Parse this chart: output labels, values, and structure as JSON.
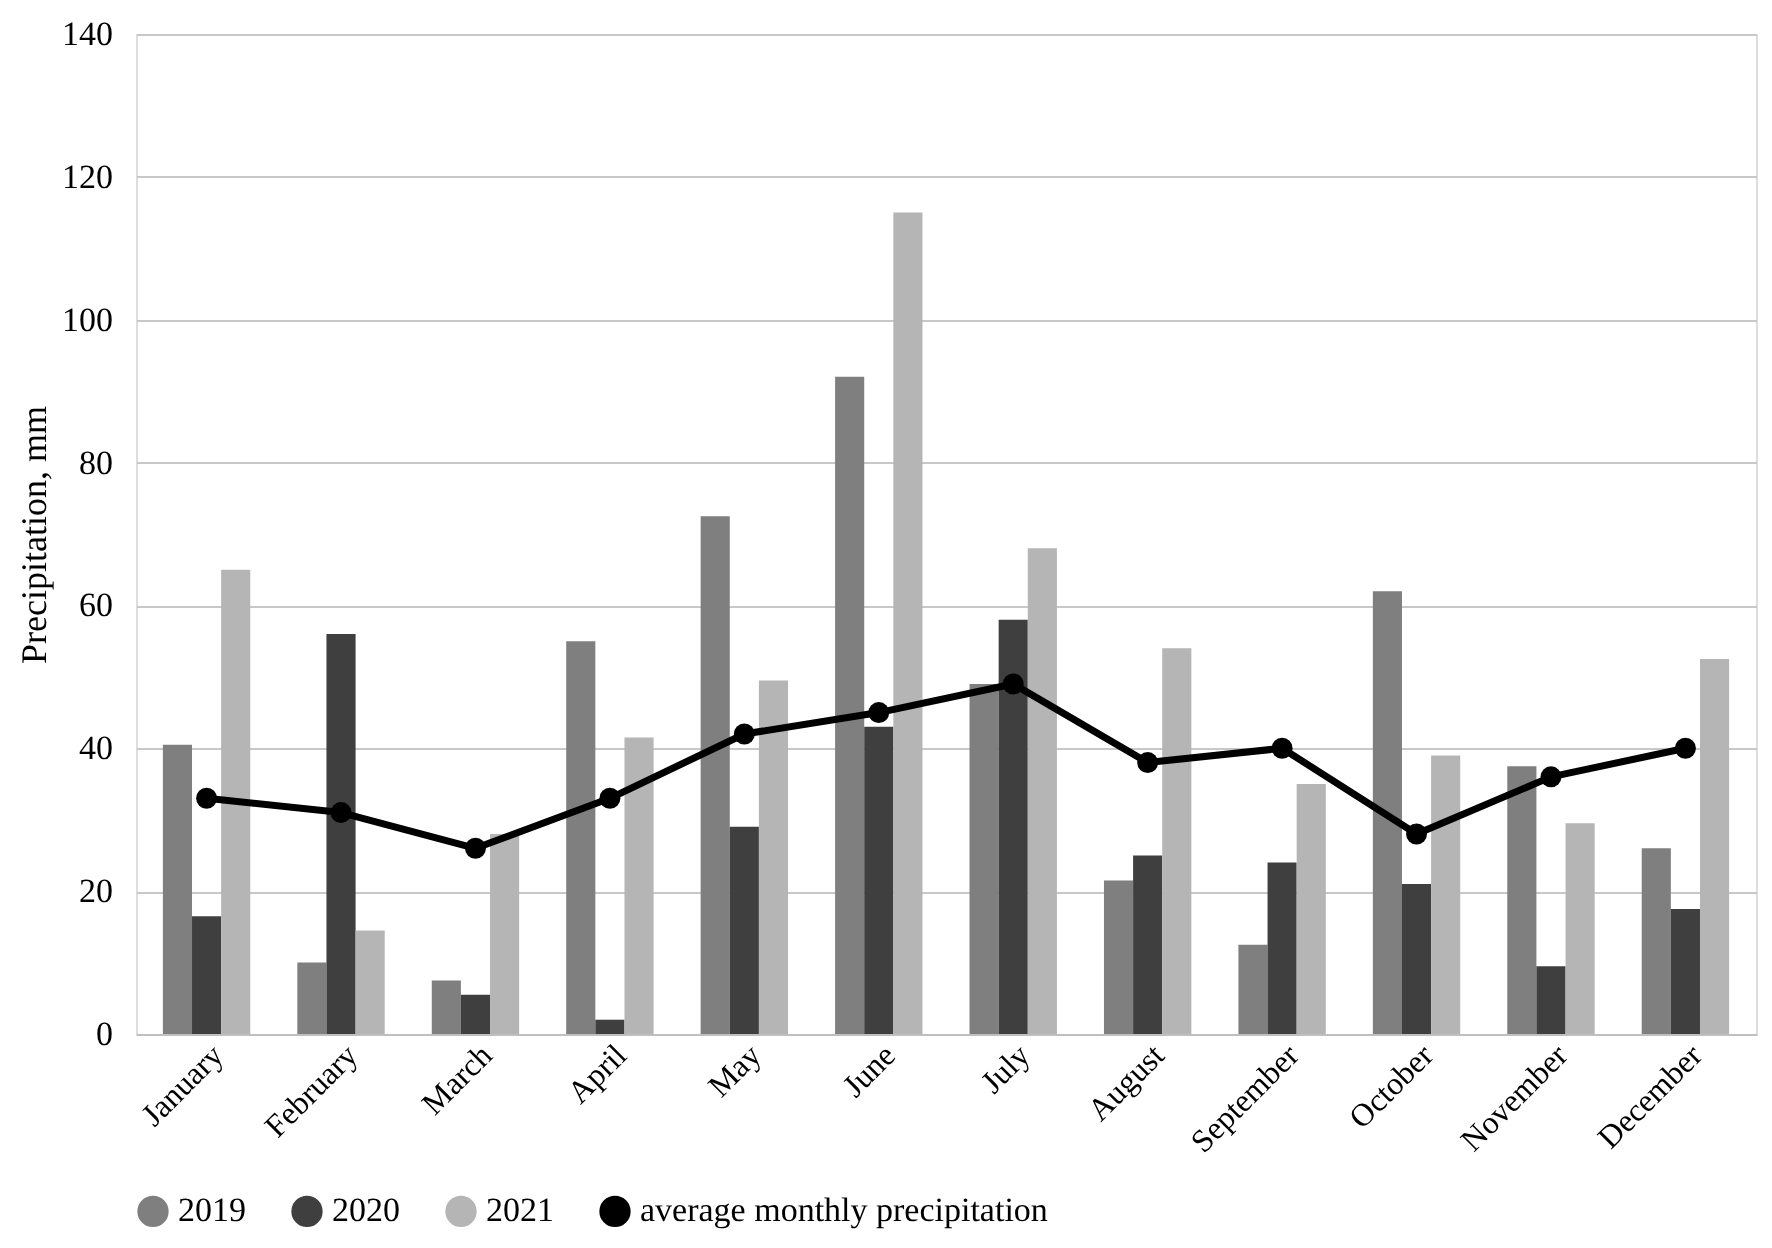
{
  "chart_data": {
    "type": "bar",
    "ylabel": "Precipitation, mm",
    "categories": [
      "January",
      "February",
      "March",
      "April",
      "May",
      "June",
      "July",
      "August",
      "September",
      "October",
      "November",
      "December"
    ],
    "series": [
      {
        "name": "2019",
        "color": "#7f7f7f",
        "values": [
          40.5,
          10,
          7.5,
          55,
          72.5,
          92,
          49,
          21.5,
          12.5,
          62,
          37.5,
          26
        ]
      },
      {
        "name": "2020",
        "color": "#3f3f3f",
        "values": [
          16.5,
          56,
          5.5,
          2,
          29,
          43,
          58,
          25,
          24,
          21,
          9.5,
          17.5
        ]
      },
      {
        "name": "2021",
        "color": "#b5b5b5",
        "values": [
          65,
          14.5,
          28,
          41.5,
          49.5,
          115,
          68,
          54,
          35,
          39,
          29.5,
          52.5
        ]
      },
      {
        "name": "average monthly precipitation",
        "type": "line",
        "color": "#000000",
        "values": [
          33,
          31,
          26,
          33,
          42,
          45,
          49,
          38,
          40,
          28,
          36,
          40
        ]
      }
    ],
    "ylim": [
      0,
      140
    ],
    "yticks": [
      0,
      20,
      40,
      60,
      80,
      100,
      120,
      140
    ],
    "grid": "y",
    "legend": "bottom",
    "marker": "circle"
  }
}
